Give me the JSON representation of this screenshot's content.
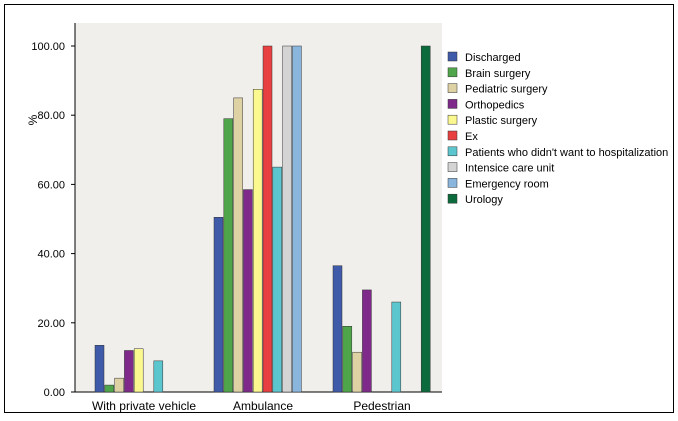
{
  "chart_data": {
    "type": "bar",
    "categories": [
      "With private vehicle",
      "Ambulance",
      "Pedestrian"
    ],
    "ylabel": "%",
    "ylim": [
      0,
      100
    ],
    "yticks": [
      "0.00",
      "20.00",
      "40.00",
      "60.00",
      "80.00",
      "100.00"
    ],
    "legend_position": "right",
    "plot_background": "#f0efec",
    "series": [
      {
        "name": "Discharged",
        "color": "#3e5aa8",
        "values": [
          13.5,
          50.5,
          36.5
        ]
      },
      {
        "name": "Brain surgery",
        "color": "#4fa64a",
        "values": [
          2,
          79,
          19
        ]
      },
      {
        "name": "Pediatric surgery",
        "color": "#ded1a4",
        "values": [
          4,
          85,
          11.5
        ]
      },
      {
        "name": "Orthopedics",
        "color": "#7f2a8a",
        "values": [
          12,
          58.5,
          29.5
        ]
      },
      {
        "name": "Plastic surgery",
        "color": "#fbf88f",
        "values": [
          12.5,
          87.5,
          null
        ]
      },
      {
        "name": "Ex",
        "color": "#e84040",
        "values": [
          null,
          100,
          null
        ]
      },
      {
        "name": "Patients who didn't want to hospitalization",
        "color": "#5cc6cf",
        "values": [
          9,
          65,
          26
        ]
      },
      {
        "name": "Intensice care unit",
        "color": "#d3d4d3",
        "values": [
          null,
          100,
          null
        ]
      },
      {
        "name": "Emergency room",
        "color": "#8ab5dd",
        "values": [
          null,
          100,
          null
        ]
      },
      {
        "name": "Urology",
        "color": "#0c6b3d",
        "values": [
          null,
          null,
          100
        ]
      }
    ]
  }
}
